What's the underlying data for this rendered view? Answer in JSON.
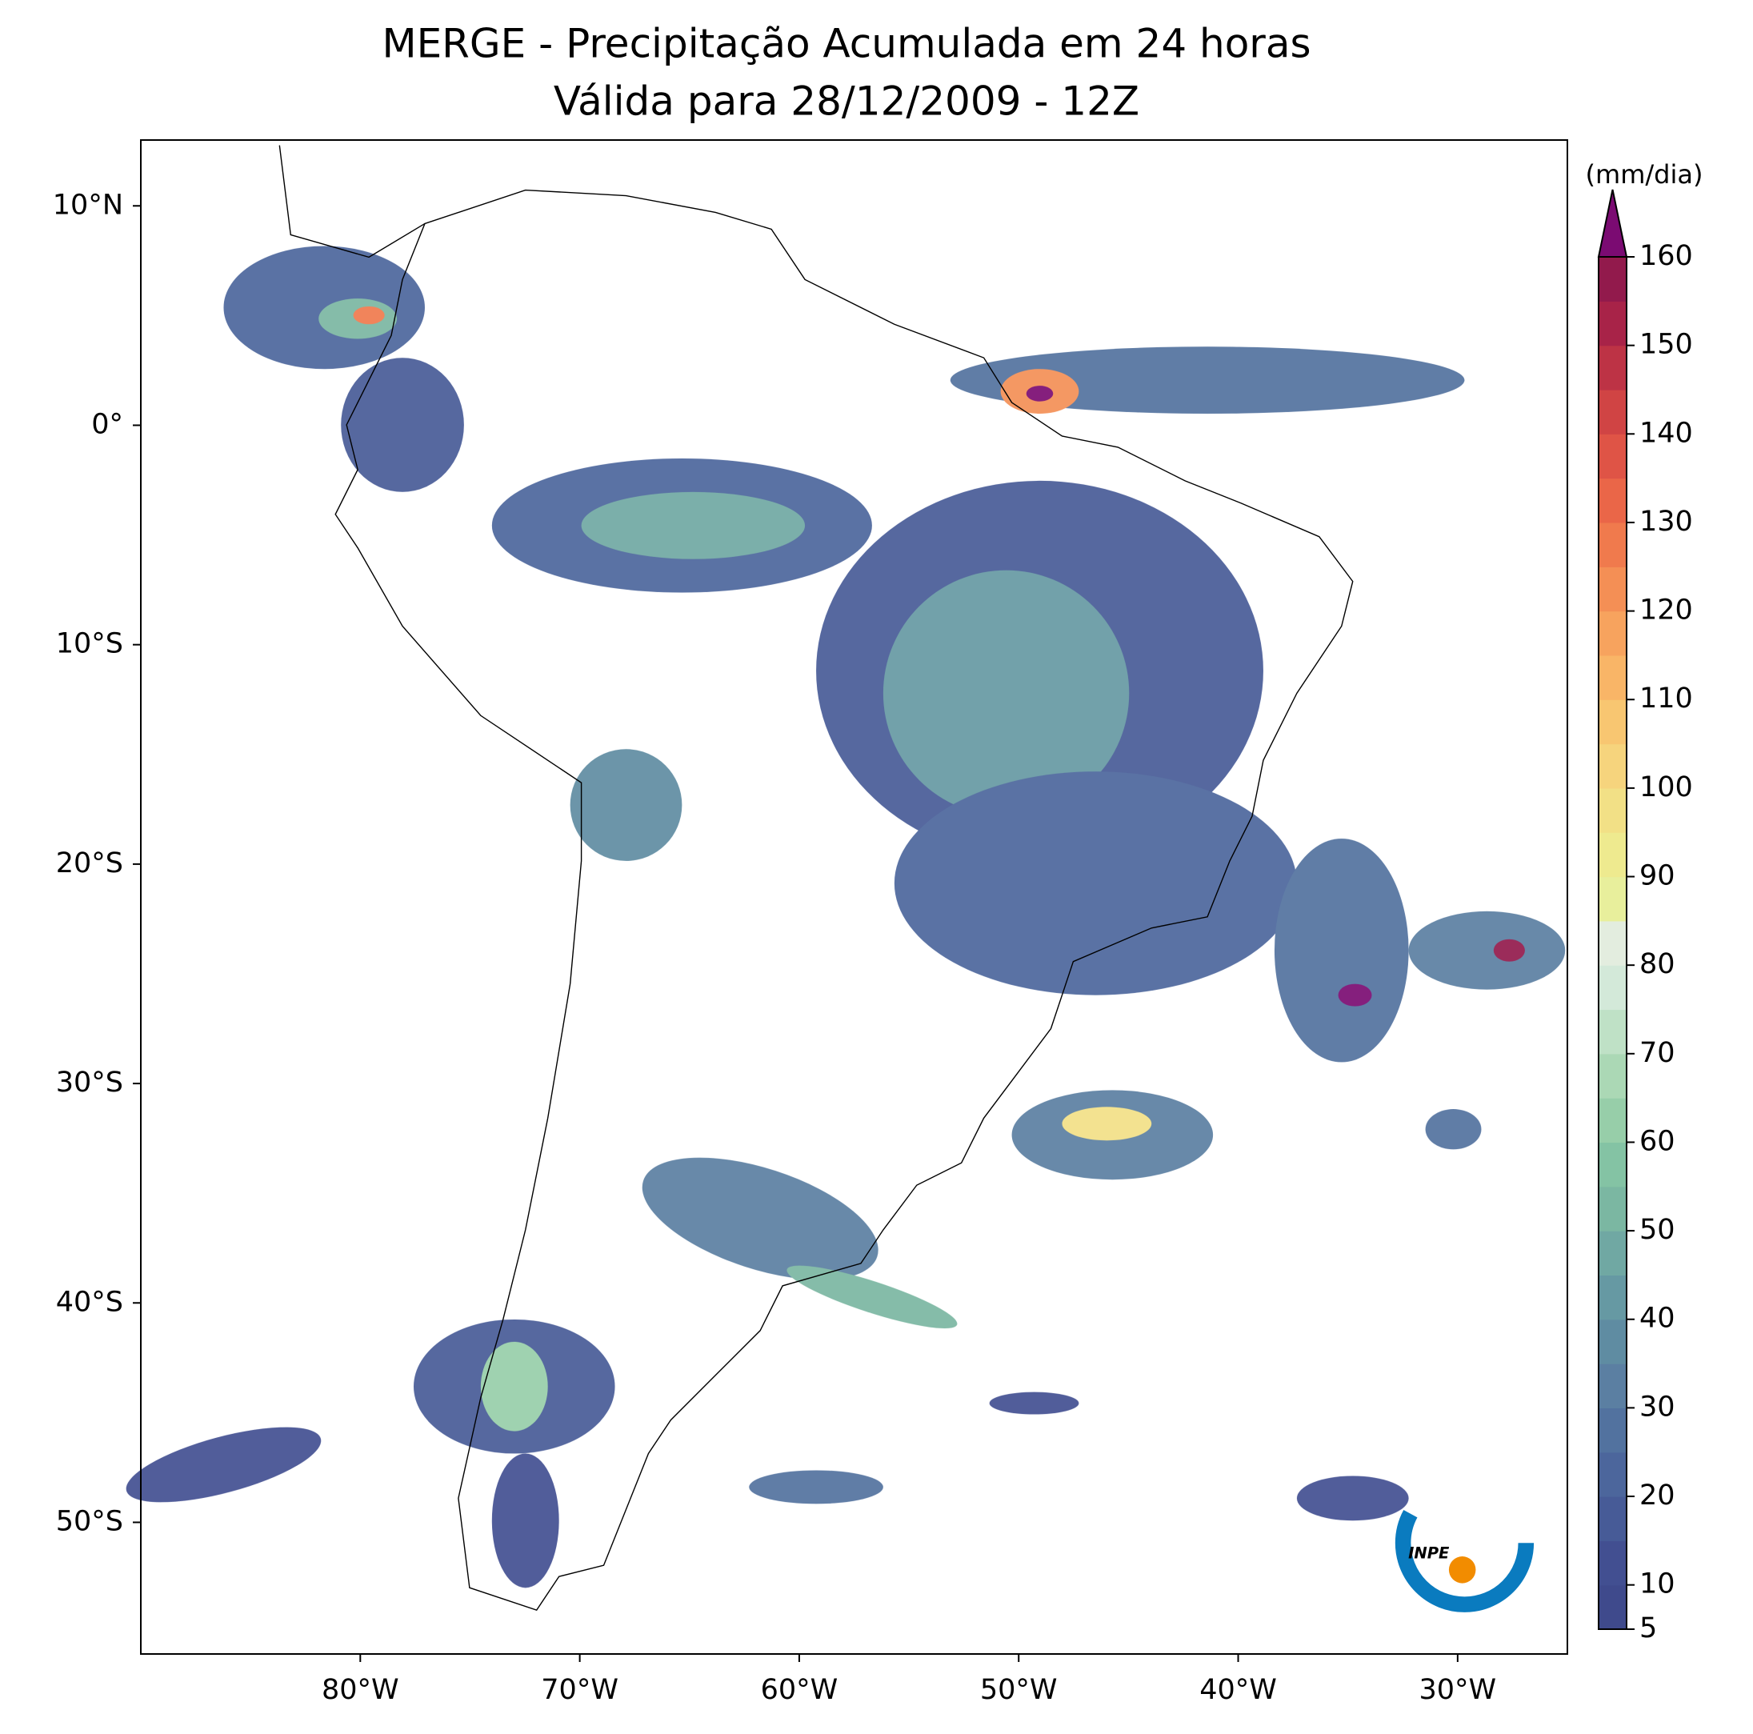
{
  "map": {
    "title": "MERGE - Precipitação Acumulada em 24 horas",
    "subtitle": "Válida para 28/12/2009 - 12Z",
    "xlim": [
      -90,
      -25
    ],
    "ylim": [
      -56,
      13
    ],
    "xticks": [
      {
        "value": -80,
        "label": "80°W"
      },
      {
        "value": -70,
        "label": "70°W"
      },
      {
        "value": -60,
        "label": "60°W"
      },
      {
        "value": -50,
        "label": "50°W"
      },
      {
        "value": -40,
        "label": "40°W"
      },
      {
        "value": -30,
        "label": "30°W"
      }
    ],
    "yticks": [
      {
        "value": 10,
        "label": "10°N"
      },
      {
        "value": 0,
        "label": "0°"
      },
      {
        "value": -10,
        "label": "10°S"
      },
      {
        "value": -20,
        "label": "20°S"
      },
      {
        "value": -30,
        "label": "30°S"
      },
      {
        "value": -40,
        "label": "40°S"
      },
      {
        "value": -50,
        "label": "50°S"
      }
    ],
    "colorbar": {
      "label": "(mm/dia)",
      "lim": [
        5,
        160
      ],
      "ticks": [
        5,
        10,
        20,
        30,
        40,
        50,
        60,
        70,
        80,
        90,
        100,
        110,
        120,
        130,
        140,
        150,
        160
      ],
      "colors": [
        "#3f4a8c",
        "#424f91",
        "#475b97",
        "#4c669c",
        "#52729f",
        "#5b7fa2",
        "#5f8ca2",
        "#6699a3",
        "#70a8a3",
        "#7bb7a2",
        "#84c3a4",
        "#97cea9",
        "#abd8b5",
        "#bfe1c6",
        "#d3e9d9",
        "#e3eddf",
        "#e8ef9c",
        "#eeea8f",
        "#f2e086",
        "#f6d47d",
        "#f8c671",
        "#f9b567",
        "#f7a35e",
        "#f48f55",
        "#f07a4d",
        "#ea6648",
        "#df5446",
        "#d04444",
        "#bd3345",
        "#a82348",
        "#921a4c"
      ],
      "extend_color": "#7b0b72"
    },
    "logo": "INPE"
  }
}
